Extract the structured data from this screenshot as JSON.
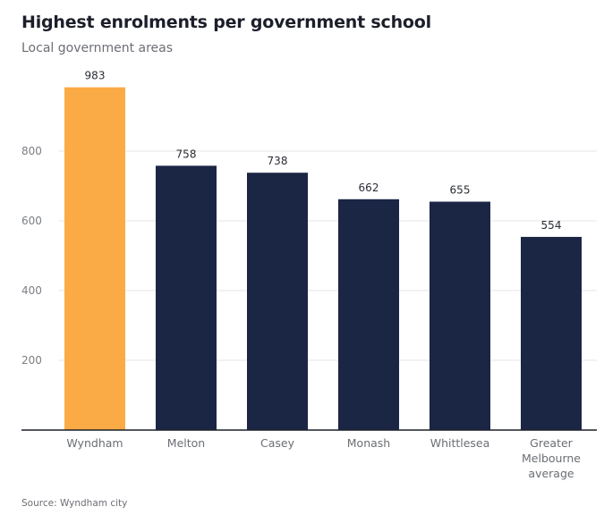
{
  "title": "Highest enrolments per government school",
  "subtitle": "Local government areas",
  "source": "Source: Wyndham city",
  "colors": {
    "highlight": "#fbab45",
    "default": "#1b2645",
    "grid": "#e6e6e6",
    "axis": "#1c1f2a"
  },
  "chart_data": {
    "type": "bar",
    "title": "Highest enrolments per government school",
    "subtitle": "Local government areas",
    "xlabel": "",
    "ylabel": "",
    "ylim": [
      0,
      1000
    ],
    "yticks": [
      200,
      400,
      600,
      800
    ],
    "grid": true,
    "categories": [
      "Wyndham",
      "Melton",
      "Casey",
      "Monash",
      "Whittlesea",
      "Greater Melbourne average"
    ],
    "category_lines": [
      [
        "Wyndham"
      ],
      [
        "Melton"
      ],
      [
        "Casey"
      ],
      [
        "Monash"
      ],
      [
        "Whittlesea"
      ],
      [
        "Greater",
        "Melbourne",
        "average"
      ]
    ],
    "values": [
      983,
      758,
      738,
      662,
      655,
      554
    ],
    "highlight_index": 0
  }
}
